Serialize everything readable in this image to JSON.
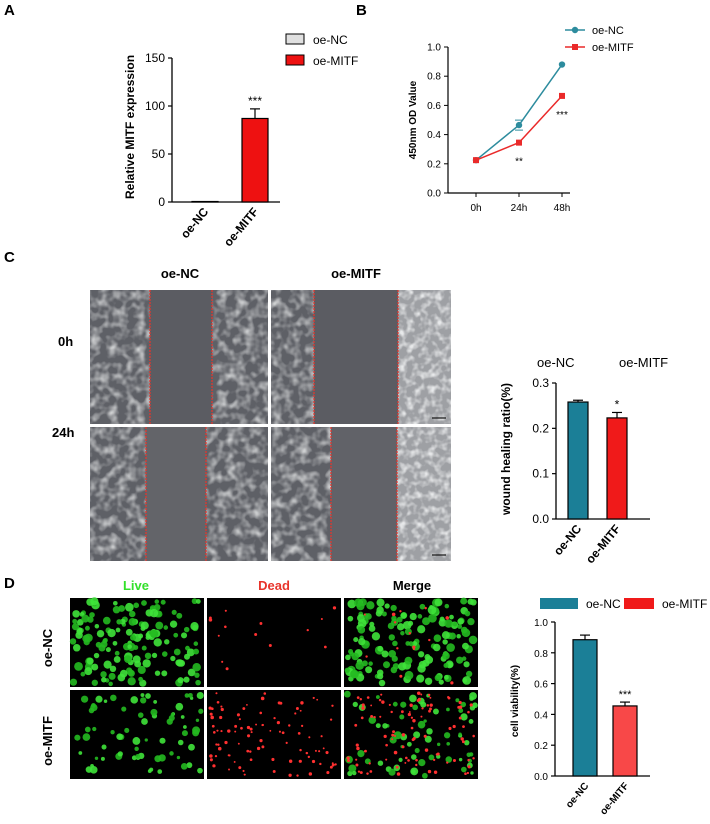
{
  "panels": {
    "a": "A",
    "b": "B",
    "c": "C",
    "d": "D"
  },
  "colors": {
    "nc_teal": "#1b7f97",
    "mitf_red": "#f01a1a",
    "line_teal": "#2d8c9e",
    "line_red": "#ea2a2a",
    "live_green": "#33e02a",
    "dead_red": "#e8342b"
  },
  "chart_data": [
    {
      "id": "A",
      "type": "bar",
      "ylabel": "Relative MITF expression",
      "categories": [
        "oe-NC",
        "oe-MITF"
      ],
      "values": [
        0.5,
        87
      ],
      "errors": [
        0,
        10
      ],
      "ylim": [
        0,
        150
      ],
      "yticks": [
        "0",
        "50",
        "100",
        "150"
      ],
      "annotations": [
        "",
        "***"
      ],
      "legend": [
        "oe-NC",
        "oe-MITF"
      ],
      "legend_position": "top-right"
    },
    {
      "id": "B",
      "type": "line",
      "ylabel": "450nm OD Value",
      "x": [
        "0h",
        "24h",
        "48h"
      ],
      "series": [
        {
          "name": "oe-NC",
          "values": [
            0.225,
            0.465,
            0.88
          ]
        },
        {
          "name": "oe-MITF",
          "values": [
            0.225,
            0.345,
            0.665
          ]
        }
      ],
      "ylim": [
        0,
        1.0
      ],
      "yticks": [
        "0.0",
        "0.2",
        "0.4",
        "0.6",
        "0.8",
        "1.0"
      ],
      "annotations": [
        "",
        "**",
        "***"
      ],
      "legend_position": "top-right"
    },
    {
      "id": "C",
      "type": "bar",
      "ylabel": "wound healing ratio(%)",
      "categories": [
        "oe-NC",
        "oe-MITF"
      ],
      "values": [
        0.258,
        0.223
      ],
      "errors": [
        0.004,
        0.012
      ],
      "ylim": [
        0,
        0.3
      ],
      "yticks": [
        "0.0",
        "0.1",
        "0.2",
        "0.3"
      ],
      "annotations": [
        "",
        "*"
      ],
      "legend": [
        "oe-NC",
        "oe-MITF"
      ]
    },
    {
      "id": "D",
      "type": "bar",
      "ylabel": "cell viability(%)",
      "categories": [
        "oe-NC",
        "oe-MITF"
      ],
      "values": [
        0.885,
        0.455
      ],
      "errors": [
        0.03,
        0.025
      ],
      "ylim": [
        0,
        1.0
      ],
      "yticks": [
        "0.0",
        "0.2",
        "0.4",
        "0.6",
        "0.8",
        "1.0"
      ],
      "annotations": [
        "",
        "***"
      ],
      "legend": [
        "oe-NC",
        "oe-MITF"
      ],
      "legend_position": "top"
    }
  ],
  "micrographs_c": {
    "cols": [
      "oe-NC",
      "oe-MITF"
    ],
    "rows": [
      "0h",
      "24h"
    ]
  },
  "micrographs_d": {
    "cols": [
      "Live",
      "Dead",
      "Merge"
    ],
    "rows": [
      "oe-NC",
      "oe-MITF"
    ]
  }
}
